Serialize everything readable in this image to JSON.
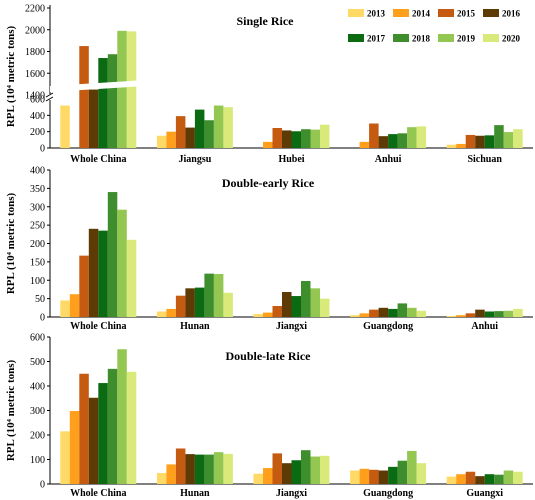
{
  "legend_years": [
    "2013",
    "2014",
    "2015",
    "2016",
    "2017",
    "2018",
    "2019",
    "2020"
  ],
  "colors": [
    "#FFD966",
    "#FF9F1C",
    "#C55A11",
    "#5E3A05",
    "#0A6B12",
    "#3E8E2E",
    "#93C752",
    "#D9EA7A"
  ],
  "ylabel": "RPL (10⁴ metric tons)",
  "chart_data": [
    {
      "type": "bar",
      "title": "Single Rice",
      "categories": [
        "Whole China",
        "Jiangsu",
        "Hubei",
        "Anhui",
        "Sichuan"
      ],
      "y_axis": {
        "type": "broken",
        "lower_range": [
          0,
          600
        ],
        "upper_range": [
          1400,
          2200
        ],
        "lower_ticks": [
          "0",
          "200",
          "400",
          "600"
        ],
        "upper_ticks": [
          "1400",
          "1600",
          "1800",
          "2000",
          "2200"
        ]
      },
      "series": [
        {
          "name": "2013",
          "values": [
            520,
            150,
            0,
            0,
            40
          ]
        },
        {
          "name": "2014",
          "values": [
            650,
            200,
            75,
            75,
            50
          ]
        },
        {
          "name": "2015",
          "values": [
            1850,
            390,
            245,
            300,
            160
          ]
        },
        {
          "name": "2016",
          "values": [
            1450,
            250,
            215,
            145,
            150
          ]
        },
        {
          "name": "2017",
          "values": [
            1740,
            470,
            205,
            170,
            155
          ]
        },
        {
          "name": "2018",
          "values": [
            1775,
            340,
            230,
            180,
            280
          ]
        },
        {
          "name": "2019",
          "values": [
            1990,
            520,
            225,
            255,
            195
          ]
        },
        {
          "name": "2020",
          "values": [
            1985,
            500,
            285,
            265,
            230
          ]
        }
      ]
    },
    {
      "type": "bar",
      "title": "Double-early Rice",
      "categories": [
        "Whole China",
        "Hunan",
        "Jiangxi",
        "Guangdong",
        "Anhui"
      ],
      "ylim": [
        0,
        400
      ],
      "y_ticks": [
        "0",
        "50",
        "100",
        "150",
        "200",
        "250",
        "300",
        "350",
        "400"
      ],
      "series": [
        {
          "name": "2013",
          "values": [
            45,
            15,
            8,
            5,
            3
          ]
        },
        {
          "name": "2014",
          "values": [
            62,
            22,
            12,
            10,
            5
          ]
        },
        {
          "name": "2015",
          "values": [
            167,
            58,
            30,
            20,
            10
          ]
        },
        {
          "name": "2016",
          "values": [
            240,
            78,
            68,
            25,
            20
          ]
        },
        {
          "name": "2017",
          "values": [
            235,
            80,
            57,
            22,
            15
          ]
        },
        {
          "name": "2018",
          "values": [
            340,
            118,
            98,
            37,
            16
          ]
        },
        {
          "name": "2019",
          "values": [
            292,
            117,
            78,
            25,
            17
          ]
        },
        {
          "name": "2020",
          "values": [
            210,
            66,
            50,
            17,
            22
          ]
        }
      ]
    },
    {
      "type": "bar",
      "title": "Double-late Rice",
      "categories": [
        "Whole China",
        "Hunan",
        "Jiangxi",
        "Guangdong",
        "Guangxi"
      ],
      "ylim": [
        0,
        600
      ],
      "y_ticks": [
        "0",
        "100",
        "200",
        "300",
        "400",
        "500",
        "600"
      ],
      "series": [
        {
          "name": "2013",
          "values": [
            215,
            45,
            42,
            55,
            30
          ]
        },
        {
          "name": "2014",
          "values": [
            298,
            80,
            65,
            62,
            40
          ]
        },
        {
          "name": "2015",
          "values": [
            450,
            145,
            125,
            58,
            50
          ]
        },
        {
          "name": "2016",
          "values": [
            352,
            122,
            85,
            55,
            32
          ]
        },
        {
          "name": "2017",
          "values": [
            412,
            120,
            97,
            70,
            40
          ]
        },
        {
          "name": "2018",
          "values": [
            470,
            120,
            138,
            95,
            38
          ]
        },
        {
          "name": "2019",
          "values": [
            550,
            130,
            112,
            135,
            55
          ]
        },
        {
          "name": "2020",
          "values": [
            458,
            123,
            115,
            85,
            50
          ]
        }
      ]
    }
  ]
}
